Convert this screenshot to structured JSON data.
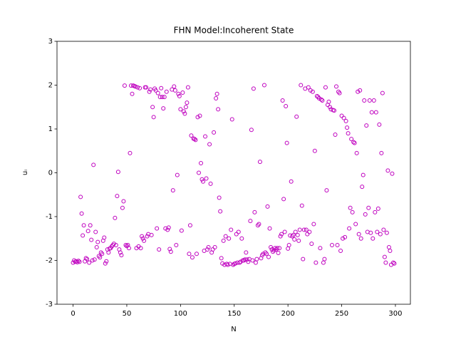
{
  "chart_data": {
    "type": "scatter",
    "title": "FHN Model:Incoherent State",
    "xlabel": "N",
    "ylabel": "uᵢ",
    "color": "#bf00bf",
    "xlim": [
      -14.95,
      313.95
    ],
    "ylim": [
      -3,
      3
    ],
    "xticks": [
      0,
      50,
      100,
      150,
      200,
      250,
      300
    ],
    "yticks": [
      -3,
      -2,
      -1,
      0,
      1,
      2,
      3
    ],
    "x": [
      0,
      1,
      2,
      3,
      4,
      5,
      6,
      7,
      8,
      9,
      10,
      11,
      12,
      13,
      14,
      15,
      16,
      17,
      18,
      19,
      20,
      21,
      22,
      23,
      24,
      25,
      26,
      27,
      28,
      29,
      30,
      31,
      32,
      33,
      34,
      35,
      36,
      37,
      38,
      39,
      40,
      41,
      42,
      43,
      44,
      45,
      46,
      47,
      48,
      49,
      50,
      51,
      52,
      53,
      54,
      55,
      56,
      57,
      58,
      59,
      60,
      61,
      62,
      63,
      64,
      65,
      66,
      67,
      68,
      69,
      70,
      71,
      72,
      73,
      74,
      75,
      76,
      77,
      78,
      79,
      80,
      81,
      82,
      83,
      84,
      85,
      86,
      87,
      88,
      89,
      90,
      91,
      92,
      93,
      94,
      95,
      96,
      97,
      98,
      99,
      100,
      101,
      102,
      103,
      104,
      105,
      106,
      107,
      108,
      109,
      110,
      111,
      112,
      113,
      114,
      115,
      116,
      117,
      118,
      119,
      120,
      121,
      122,
      123,
      124,
      125,
      126,
      127,
      128,
      129,
      130,
      131,
      132,
      133,
      134,
      135,
      136,
      137,
      138,
      139,
      140,
      141,
      142,
      143,
      144,
      145,
      146,
      147,
      148,
      149,
      150,
      151,
      152,
      153,
      154,
      155,
      156,
      157,
      158,
      159,
      160,
      161,
      162,
      163,
      164,
      165,
      166,
      167,
      168,
      169,
      170,
      171,
      172,
      173,
      174,
      175,
      176,
      177,
      178,
      179,
      180,
      181,
      182,
      183,
      184,
      185,
      186,
      187,
      188,
      189,
      190,
      191,
      192,
      193,
      194,
      195,
      196,
      197,
      198,
      199,
      200,
      201,
      202,
      203,
      204,
      205,
      206,
      207,
      208,
      209,
      210,
      211,
      212,
      213,
      214,
      215,
      216,
      217,
      218,
      219,
      220,
      221,
      222,
      223,
      224,
      225,
      226,
      227,
      228,
      229,
      230,
      231,
      232,
      233,
      234,
      235,
      236,
      237,
      238,
      239,
      240,
      241,
      242,
      243,
      244,
      245,
      246,
      247,
      248,
      249,
      250,
      251,
      252,
      253,
      254,
      255,
      256,
      257,
      258,
      259,
      260,
      261,
      262,
      263,
      264,
      265,
      266,
      267,
      268,
      269,
      270,
      271,
      272,
      273,
      274,
      275,
      276,
      277,
      278,
      279,
      280,
      281,
      282,
      283,
      284,
      285,
      286,
      287,
      288,
      289,
      290,
      291,
      292,
      293,
      294,
      295,
      296,
      297,
      298,
      299
    ],
    "values": [
      -2.05,
      -2.0,
      -2.03,
      -2.02,
      -2.04,
      -2.01,
      -2.03,
      -0.55,
      -0.93,
      -1.43,
      -1.2,
      -2.02,
      -1.95,
      -1.97,
      -1.33,
      -2.05,
      -1.2,
      -1.53,
      -2.0,
      0.18,
      -1.98,
      -1.35,
      -1.7,
      -1.58,
      -1.9,
      -1.93,
      -1.82,
      -1.85,
      -1.55,
      -1.48,
      -2.07,
      -2.02,
      -1.75,
      -1.82,
      -1.73,
      -1.72,
      -1.68,
      -1.65,
      -1.62,
      -1.03,
      -1.65,
      -0.53,
      0.02,
      -1.75,
      -1.82,
      -1.88,
      -0.8,
      -0.65,
      1.99,
      -1.65,
      -1.67,
      -1.65,
      -1.72,
      0.45,
      1.99,
      1.8,
      1.99,
      1.98,
      1.97,
      -1.72,
      1.95,
      -1.68,
      1.93,
      -1.72,
      -1.45,
      -1.5,
      -1.55,
      1.95,
      1.95,
      -1.45,
      -1.4,
      1.85,
      1.9,
      -1.42,
      1.5,
      1.27,
      1.92,
      1.88,
      -1.27,
      1.82,
      -1.75,
      1.73,
      1.93,
      1.73,
      1.47,
      1.73,
      -1.27,
      1.85,
      -1.3,
      -1.25,
      -1.74,
      -1.8,
      1.9,
      -0.4,
      1.97,
      1.88,
      -1.65,
      -0.05,
      1.8,
      1.75,
      1.45,
      -1.32,
      1.83,
      1.4,
      1.35,
      1.5,
      1.6,
      1.95,
      -1.85,
      -1.2,
      0.85,
      -1.93,
      0.78,
      0.77,
      0.75,
      -1.85,
      1.27,
      0.0,
      1.3,
      0.22,
      -0.15,
      -0.2,
      -1.78,
      0.83,
      -0.13,
      -1.75,
      -1.7,
      0.65,
      -0.25,
      -1.82,
      -1.75,
      0.92,
      -1.7,
      1.7,
      1.8,
      1.45,
      -0.57,
      -0.88,
      -1.95,
      -2.07,
      -1.55,
      -2.1,
      -1.45,
      -2.08,
      -2.1,
      -1.5,
      -2.08,
      -1.3,
      1.22,
      -2.1,
      -2.08,
      -2.07,
      -1.4,
      -2.05,
      -1.35,
      -2.05,
      -2.03,
      -1.5,
      -2.0,
      -2.0,
      -1.98,
      -1.82,
      -1.98,
      -2.03,
      -1.97,
      -1.1,
      0.98,
      -2.0,
      1.92,
      -0.9,
      -2.05,
      -1.97,
      -1.2,
      -1.17,
      0.25,
      -1.95,
      -1.88,
      -1.85,
      2.0,
      -1.82,
      -1.85,
      -0.77,
      -1.92,
      -1.27,
      -1.7,
      -1.75,
      -1.8,
      -1.77,
      -1.72,
      -1.75,
      -1.72,
      -1.83,
      -1.72,
      -1.45,
      -1.4,
      1.65,
      -0.6,
      -1.35,
      1.52,
      0.68,
      -1.73,
      -1.65,
      -1.43,
      -0.2,
      -1.45,
      -1.42,
      -1.52,
      -1.35,
      1.28,
      -1.42,
      -1.55,
      -1.3,
      2.0,
      -0.75,
      -1.97,
      -1.3,
      1.92,
      -1.3,
      -1.4,
      1.95,
      -1.35,
      1.88,
      -1.62,
      1.85,
      -1.17,
      0.5,
      -2.05,
      1.75,
      1.73,
      1.7,
      -1.72,
      1.67,
      1.65,
      -2.05,
      -1.97,
      1.95,
      -0.4,
      1.55,
      1.62,
      1.5,
      1.45,
      -1.65,
      1.43,
      1.42,
      0.87,
      1.97,
      -1.65,
      1.85,
      1.82,
      -1.78,
      1.3,
      -1.5,
      1.25,
      -1.47,
      1.18,
      1.03,
      0.9,
      -1.27,
      -0.8,
      0.77,
      -0.9,
      0.7,
      0.68,
      -1.17,
      0.45,
      1.85,
      -1.4,
      1.88,
      -1.5,
      -0.32,
      -0.05,
      1.65,
      -0.95,
      1.08,
      -1.35,
      -0.8,
      1.65,
      -1.37,
      1.38,
      -1.5,
      1.65,
      -0.9,
      1.38,
      -1.35,
      -0.82,
      1.1,
      -1.4,
      0.45,
      1.82,
      -1.3,
      -1.92,
      -2.05,
      -1.37,
      0.05,
      -1.7,
      -1.78,
      -2.1,
      -0.02,
      -2.05,
      -2.07
    ]
  }
}
